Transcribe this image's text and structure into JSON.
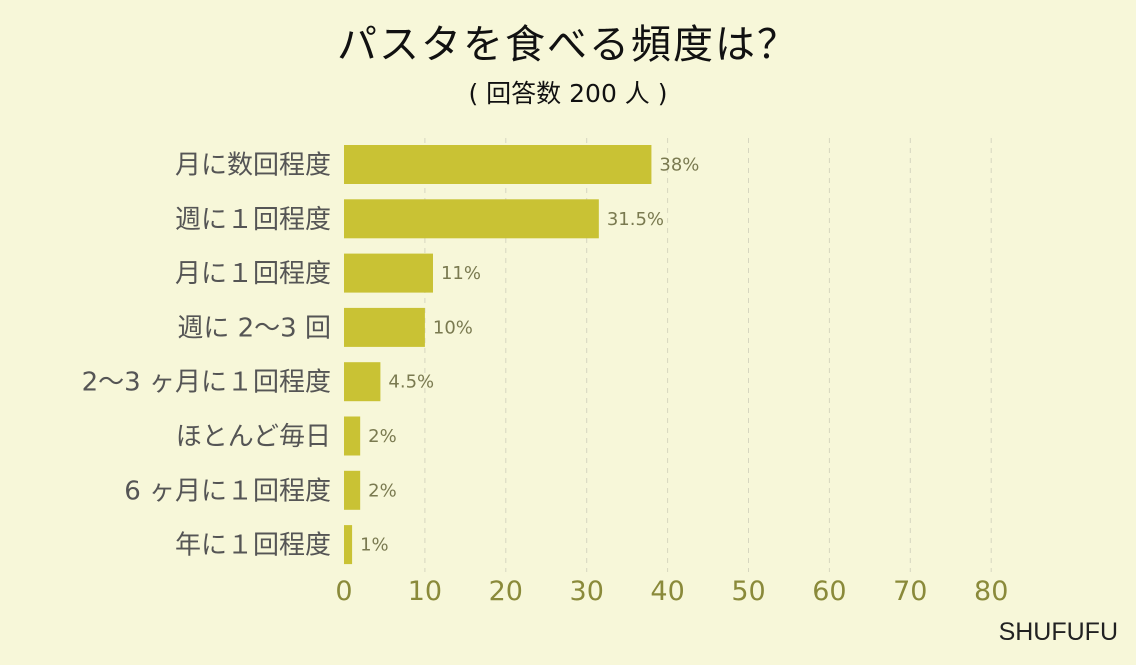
{
  "title": "パスタを食べる頻度は？",
  "subtitle": "( 回答数 200 人 )",
  "watermark": "SHUFUFU",
  "colors": {
    "background": "#f7f7d9",
    "bar": "#c9c234",
    "tick": "#8a8a3a"
  },
  "chart_data": {
    "type": "bar",
    "orientation": "horizontal",
    "title": "パスタを食べる頻度は？",
    "subtitle": "( 回答数 200 人 )",
    "categories": [
      "月に数回程度",
      "週に１回程度",
      "月に１回程度",
      "週に 2～3 回",
      "2～3 ヶ月に１回程度",
      "ほとんど毎日",
      "6 ヶ月に１回程度",
      "年に１回程度"
    ],
    "values": [
      38,
      31.5,
      11,
      10,
      4.5,
      2,
      2,
      1
    ],
    "value_labels": [
      "38%",
      "31.5%",
      "11%",
      "10%",
      "4.5%",
      "2%",
      "2%",
      "1%"
    ],
    "xlim": [
      0,
      80
    ],
    "xticks": [
      0,
      10,
      20,
      30,
      40,
      50,
      60,
      70,
      80
    ],
    "grid": true,
    "xlabel": "",
    "ylabel": ""
  }
}
